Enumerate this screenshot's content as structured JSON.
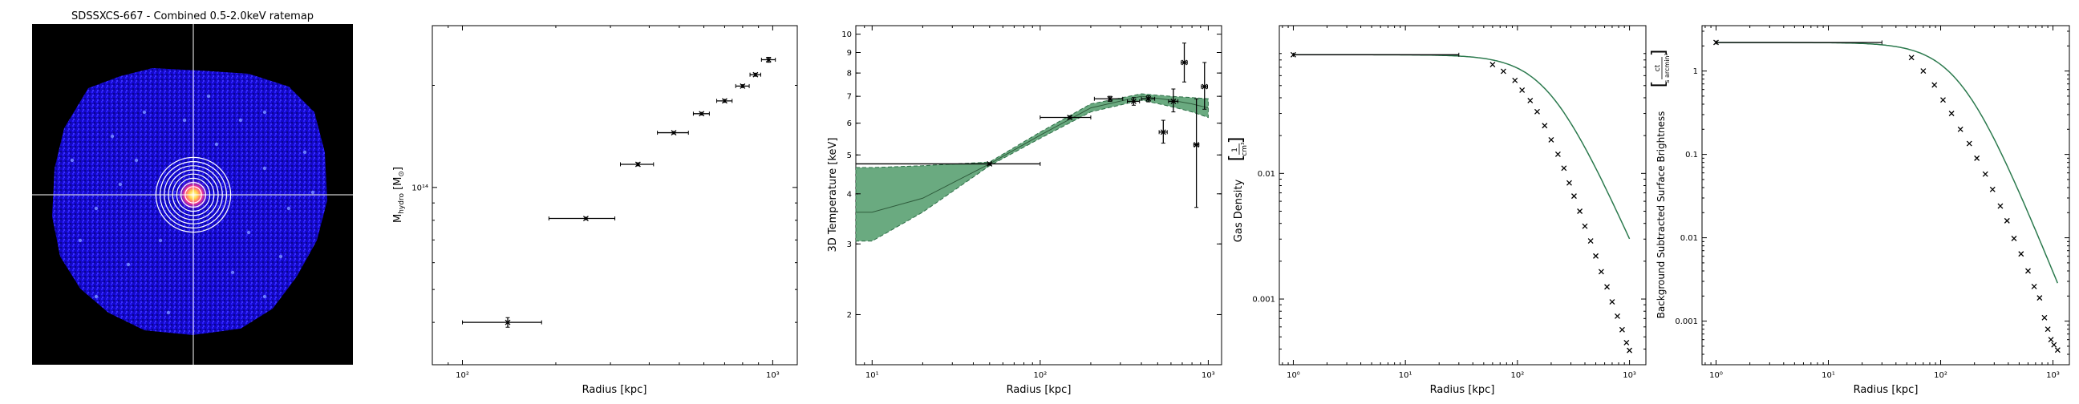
{
  "figure": {
    "colors": {
      "axis": "#000000",
      "band_fill": "#6aaa80",
      "band_edge": "#2c6e46",
      "model_line": "#2f5c3c",
      "image_bg": "#000000",
      "crosshair": "#ffffff"
    }
  },
  "chart_data": [
    {
      "type": "image",
      "title": "SDSSXCS-667 - Combined 0.5-2.0keV ratemap",
      "description_elements": [
        "blue-noise-footprint",
        "white-crosshair",
        "white-annulus-rings",
        "bright-centre",
        "point-sources"
      ],
      "annuli_count": 8
    },
    {
      "type": "scatter",
      "xlabel": "Radius [kpc]",
      "ylabel": "M_hydro [M⊙]",
      "xscale": "log",
      "yscale": "log",
      "xlim": [
        80,
        1200
      ],
      "ylim": [
        30000000000000,
        300000000000000
      ],
      "xticks": [
        100,
        1000
      ],
      "xtick_labels": [
        "10²",
        "10³"
      ],
      "yticks": [
        100000000000000
      ],
      "ytick_labels": [
        "10¹⁴"
      ],
      "points": [
        {
          "x": 140,
          "y": 40000000000000,
          "xerr": [
            40,
            40
          ],
          "yerr": [
            1300000000000,
            1300000000000
          ]
        },
        {
          "x": 250,
          "y": 81000000000000,
          "xerr": [
            60,
            60
          ],
          "yerr": [
            700000000000,
            700000000000
          ]
        },
        {
          "x": 368,
          "y": 117000000000000,
          "xerr": [
            45,
            45
          ],
          "yerr": [
            1200000000000,
            1200000000000
          ]
        },
        {
          "x": 480,
          "y": 145000000000000,
          "xerr": [
            55,
            55
          ],
          "yerr": [
            1200000000000,
            1200000000000
          ]
        },
        {
          "x": 590,
          "y": 165000000000000,
          "xerr": [
            35,
            35
          ],
          "yerr": [
            1500000000000,
            1500000000000
          ]
        },
        {
          "x": 700,
          "y": 180000000000000,
          "xerr": [
            40,
            40
          ],
          "yerr": [
            1800000000000,
            1800000000000
          ]
        },
        {
          "x": 800,
          "y": 199000000000000,
          "xerr": [
            40,
            40
          ],
          "yerr": [
            2000000000000,
            2000000000000
          ]
        },
        {
          "x": 880,
          "y": 215000000000000,
          "xerr": [
            35,
            35
          ],
          "yerr": [
            2200000000000,
            2200000000000
          ]
        },
        {
          "x": 970,
          "y": 238000000000000,
          "xerr": [
            50,
            50
          ],
          "yerr": [
            4000000000000,
            4000000000000
          ]
        }
      ]
    },
    {
      "type": "scatter",
      "xlabel": "Radius [kpc]",
      "ylabel": "3D Temperature [keV]",
      "xscale": "log",
      "yscale": "log",
      "xlim": [
        8,
        1200
      ],
      "ylim": [
        1.5,
        10.5
      ],
      "xticks": [
        10,
        100,
        1000
      ],
      "xtick_labels": [
        "10¹",
        "10²",
        "10³"
      ],
      "yticks": [
        2,
        3,
        4,
        5,
        6,
        7,
        8,
        9,
        10
      ],
      "ytick_labels": [
        "2",
        "3",
        "4",
        "5",
        "6",
        "7",
        "8",
        "9",
        "10"
      ],
      "points": [
        {
          "x": 50,
          "y": 4.75,
          "xerr": [
            42,
            50
          ],
          "yerr": [
            0.03,
            0.03
          ]
        },
        {
          "x": 150,
          "y": 6.2,
          "xerr": [
            50,
            50
          ],
          "yerr": [
            0.05,
            0.05
          ]
        },
        {
          "x": 260,
          "y": 6.9,
          "xerr": [
            50,
            50
          ],
          "yerr": [
            0.1,
            0.1
          ]
        },
        {
          "x": 360,
          "y": 6.8,
          "xerr": [
            30,
            30
          ],
          "yerr": [
            0.15,
            0.15
          ]
        },
        {
          "x": 440,
          "y": 6.9,
          "xerr": [
            40,
            40
          ],
          "yerr": [
            0.12,
            0.12
          ]
        },
        {
          "x": 620,
          "y": 6.8,
          "xerr": [
            40,
            40
          ],
          "yerr": [
            0.4,
            0.5
          ]
        },
        {
          "x": 540,
          "y": 5.7,
          "xerr": [
            30,
            30
          ],
          "yerr": [
            0.35,
            0.4
          ]
        },
        {
          "x": 720,
          "y": 8.5,
          "xerr": [
            30,
            30
          ],
          "yerr": [
            0.9,
            1.0
          ]
        },
        {
          "x": 850,
          "y": 5.3,
          "xerr": [
            30,
            30
          ],
          "yerr": [
            1.6,
            1.6
          ]
        },
        {
          "x": 950,
          "y": 7.4,
          "xerr": [
            40,
            40
          ],
          "yerr": [
            0.9,
            1.1
          ]
        }
      ],
      "band": {
        "x": [
          8,
          10,
          20,
          50,
          100,
          200,
          400,
          600,
          800,
          1000
        ],
        "lower": [
          3.05,
          3.05,
          3.6,
          4.7,
          5.5,
          6.4,
          6.85,
          6.6,
          6.4,
          6.2
        ],
        "median": [
          3.6,
          3.6,
          3.9,
          4.75,
          5.6,
          6.55,
          7.0,
          6.85,
          6.7,
          6.55
        ],
        "upper": [
          4.65,
          4.65,
          4.7,
          4.8,
          5.7,
          6.7,
          7.1,
          7.0,
          6.95,
          6.9
        ]
      }
    },
    {
      "type": "scatter",
      "xlabel": "Radius [kpc]",
      "ylabel": "Gas Density [1/cm³]",
      "xscale": "log",
      "yscale": "log",
      "xlim": [
        0.75,
        1400
      ],
      "ylim": [
        0.0003,
        0.15
      ],
      "xticks": [
        1,
        10,
        100,
        1000
      ],
      "xtick_labels": [
        "10⁰",
        "10¹",
        "10²",
        "10³"
      ],
      "yticks": [
        0.001,
        0.01
      ],
      "ytick_labels": [
        "0.001",
        "0.01"
      ],
      "points": [
        {
          "x": 1,
          "y": 0.088,
          "xerr": [
            0,
            29
          ]
        },
        {
          "x": 60,
          "y": 0.0735
        },
        {
          "x": 75,
          "y": 0.065
        },
        {
          "x": 95,
          "y": 0.055
        },
        {
          "x": 110,
          "y": 0.046
        },
        {
          "x": 130,
          "y": 0.038
        },
        {
          "x": 150,
          "y": 0.031
        },
        {
          "x": 175,
          "y": 0.024
        },
        {
          "x": 200,
          "y": 0.0185
        },
        {
          "x": 230,
          "y": 0.0142
        },
        {
          "x": 260,
          "y": 0.011
        },
        {
          "x": 290,
          "y": 0.0084
        },
        {
          "x": 320,
          "y": 0.0066
        },
        {
          "x": 360,
          "y": 0.005
        },
        {
          "x": 400,
          "y": 0.0038
        },
        {
          "x": 450,
          "y": 0.0029
        },
        {
          "x": 500,
          "y": 0.0022
        },
        {
          "x": 560,
          "y": 0.00165
        },
        {
          "x": 630,
          "y": 0.00125
        },
        {
          "x": 700,
          "y": 0.00095
        },
        {
          "x": 780,
          "y": 0.00073
        },
        {
          "x": 860,
          "y": 0.00057
        },
        {
          "x": 940,
          "y": 0.00045
        },
        {
          "x": 1000,
          "y": 0.00039
        }
      ],
      "model": {
        "rc": 190,
        "beta": 0.67,
        "n0": 0.088
      }
    },
    {
      "type": "scatter",
      "xlabel": "Radius [kpc]",
      "ylabel": "Background Subtracted Surface Brightness [ct/(s arcmin²)]",
      "xscale": "log",
      "yscale": "log",
      "xlim": [
        0.75,
        1400
      ],
      "ylim": [
        0.0003,
        3.5
      ],
      "xticks": [
        1,
        10,
        100,
        1000
      ],
      "xtick_labels": [
        "10⁰",
        "10¹",
        "10²",
        "10³"
      ],
      "yticks": [
        0.001,
        0.01,
        0.1,
        1
      ],
      "ytick_labels": [
        "0.001",
        "0.01",
        "0.1",
        "1"
      ],
      "points": [
        {
          "x": 1,
          "y": 2.2,
          "xerr": [
            0,
            29
          ]
        },
        {
          "x": 55,
          "y": 1.45
        },
        {
          "x": 70,
          "y": 1.0
        },
        {
          "x": 88,
          "y": 0.68
        },
        {
          "x": 105,
          "y": 0.45
        },
        {
          "x": 125,
          "y": 0.31
        },
        {
          "x": 150,
          "y": 0.2
        },
        {
          "x": 180,
          "y": 0.135
        },
        {
          "x": 210,
          "y": 0.09
        },
        {
          "x": 250,
          "y": 0.058
        },
        {
          "x": 290,
          "y": 0.038
        },
        {
          "x": 340,
          "y": 0.024
        },
        {
          "x": 390,
          "y": 0.016
        },
        {
          "x": 450,
          "y": 0.0098
        },
        {
          "x": 520,
          "y": 0.0064
        },
        {
          "x": 600,
          "y": 0.004
        },
        {
          "x": 680,
          "y": 0.0026
        },
        {
          "x": 760,
          "y": 0.0019
        },
        {
          "x": 840,
          "y": 0.0011
        },
        {
          "x": 900,
          "y": 0.0008
        },
        {
          "x": 960,
          "y": 0.0006
        },
        {
          "x": 1020,
          "y": 0.00052
        },
        {
          "x": 1100,
          "y": 0.00045
        }
      ],
      "model": {
        "rc": 150,
        "beta": 0.72,
        "s0": 2.2
      }
    }
  ]
}
